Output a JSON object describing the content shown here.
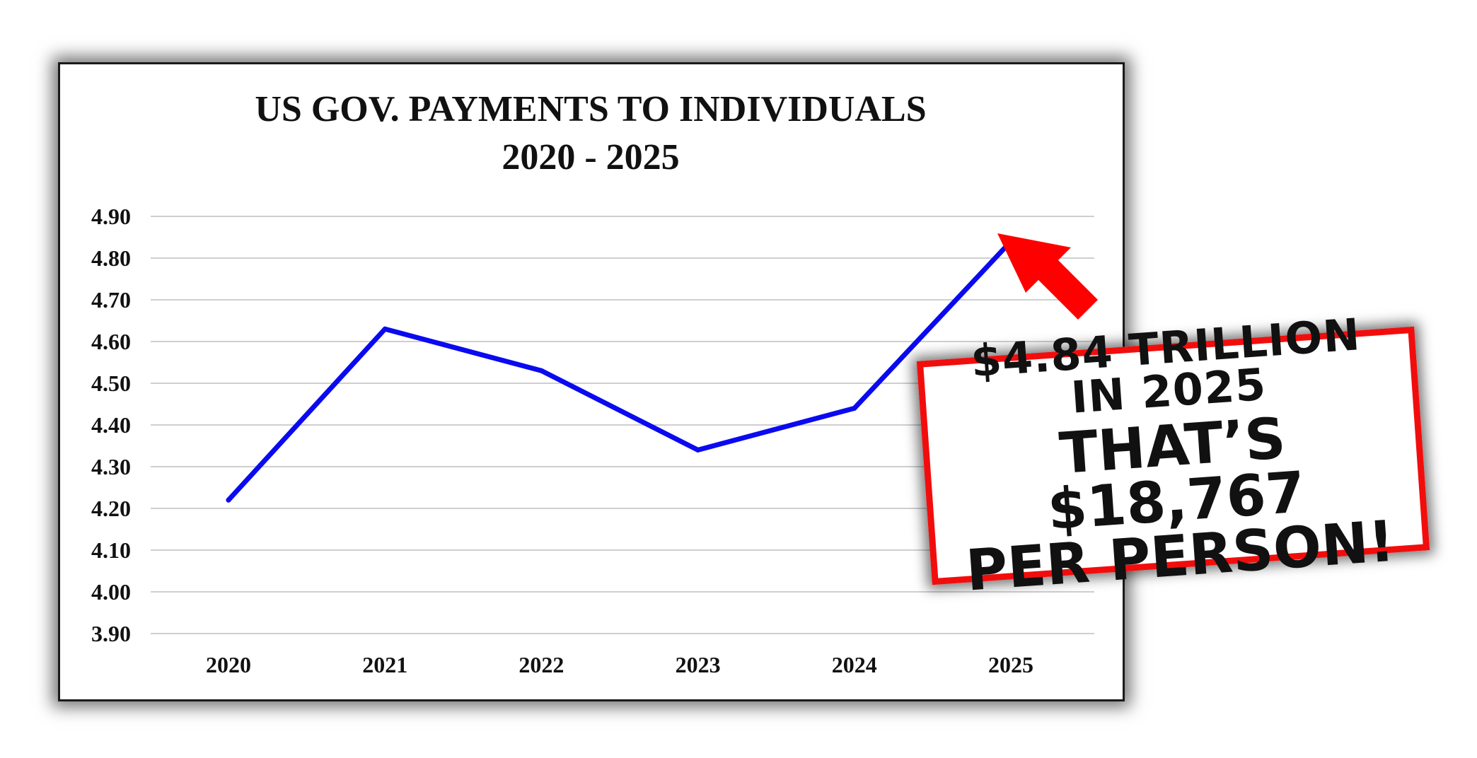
{
  "chart_data": {
    "type": "line",
    "title": "US GOV. PAYMENTS TO INDIVIDUALS",
    "subtitle": "2020 - 2025",
    "categories": [
      "2020",
      "2021",
      "2022",
      "2023",
      "2024",
      "2025"
    ],
    "series": [
      {
        "values": [
          4.22,
          4.63,
          4.53,
          4.34,
          4.44,
          4.84
        ],
        "color": "#0a0af0"
      }
    ],
    "ylim": [
      3.9,
      4.9
    ],
    "yticks": [
      "4.90",
      "4.80",
      "4.70",
      "4.60",
      "4.50",
      "4.40",
      "4.30",
      "4.20",
      "4.10",
      "4.00",
      "3.90"
    ],
    "grid": true,
    "xlabel": "",
    "ylabel": ""
  },
  "callout": {
    "line1": "$4.84 TRILLION",
    "line2": "IN 2025",
    "line3": "THAT’S $18,767",
    "line4": "PER PERSON!",
    "border_color": "#f20d0d",
    "arrow_color": "#ff0000"
  }
}
